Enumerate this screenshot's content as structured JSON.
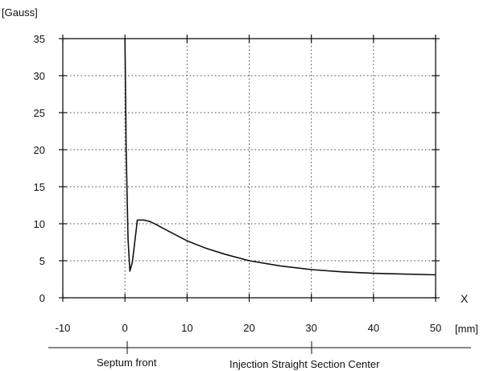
{
  "chart_data": {
    "type": "line",
    "ylabel": "[Gauss]",
    "xlabel": "X",
    "xunit": "[mm]",
    "xlim": [
      -10,
      50
    ],
    "ylim": [
      0,
      35
    ],
    "xticks": [
      -10,
      0,
      10,
      20,
      30,
      40,
      50
    ],
    "yticks": [
      0,
      5,
      10,
      15,
      20,
      25,
      30,
      35
    ],
    "grid": true,
    "series": [
      {
        "x": [
          0,
          0.2,
          0.5,
          0.8,
          1.2,
          2,
          3,
          4,
          5,
          7,
          10,
          13,
          16,
          20,
          25,
          30,
          35,
          40,
          45,
          50
        ],
        "y": [
          35,
          20,
          8,
          3.6,
          4.8,
          10.5,
          10.5,
          10.3,
          9.9,
          9.0,
          7.7,
          6.7,
          5.9,
          5.0,
          4.3,
          3.8,
          3.5,
          3.3,
          3.2,
          3.1
        ]
      }
    ],
    "annotations": {
      "left": "Septum  front",
      "right": "Injection  Straight  Section  Center"
    }
  },
  "colors": {
    "line": "#111111",
    "grid": "#444444"
  }
}
